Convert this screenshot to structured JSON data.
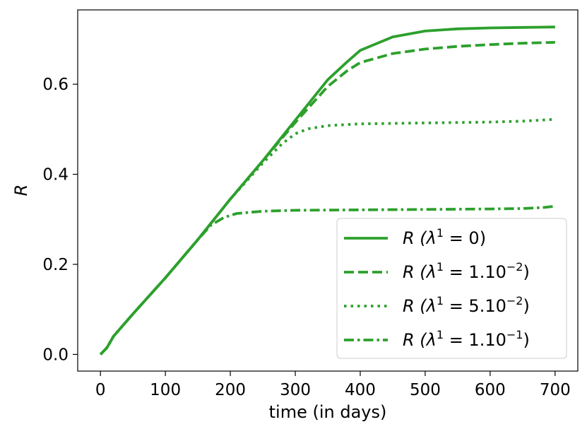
{
  "chart_data": {
    "type": "line",
    "xlabel": "time (in days)",
    "ylabel": "R",
    "xlim": [
      -35,
      735
    ],
    "ylim": [
      -0.037,
      0.765
    ],
    "xticks": [
      0,
      100,
      200,
      300,
      400,
      500,
      600,
      700
    ],
    "yticks": [
      0.0,
      0.2,
      0.4,
      0.6
    ],
    "grid": false,
    "legend_position": "lower-right",
    "color": "#2ca02c",
    "series": [
      {
        "name": "R (λ¹ = 0)",
        "legend": {
          "prefix": "R (λ",
          "sup": "1",
          "mid": " = 0",
          "exp": "",
          "suffix": ")"
        },
        "style": "solid",
        "x": [
          0,
          10,
          20,
          50,
          100,
          150,
          200,
          250,
          300,
          350,
          380,
          400,
          450,
          500,
          550,
          600,
          650,
          700
        ],
        "y": [
          0.0,
          0.015,
          0.04,
          0.09,
          0.17,
          0.255,
          0.345,
          0.43,
          0.52,
          0.61,
          0.65,
          0.675,
          0.705,
          0.718,
          0.723,
          0.725,
          0.726,
          0.727
        ]
      },
      {
        "name": "R (λ¹ = 1.10⁻²)",
        "legend": {
          "prefix": "R (λ",
          "sup": "1",
          "mid": " = 1.10",
          "exp": "−2",
          "suffix": ")"
        },
        "style": "dashed",
        "x": [
          0,
          10,
          20,
          50,
          100,
          150,
          200,
          250,
          300,
          350,
          380,
          400,
          450,
          500,
          550,
          600,
          650,
          700
        ],
        "y": [
          0.0,
          0.015,
          0.04,
          0.09,
          0.17,
          0.255,
          0.345,
          0.43,
          0.515,
          0.595,
          0.63,
          0.648,
          0.668,
          0.678,
          0.684,
          0.688,
          0.691,
          0.693
        ]
      },
      {
        "name": "R (λ¹ = 5.10⁻²)",
        "legend": {
          "prefix": "R (λ",
          "sup": "1",
          "mid": " = 5.10",
          "exp": "−2",
          "suffix": ")"
        },
        "style": "dotted",
        "x": [
          0,
          10,
          20,
          50,
          100,
          150,
          200,
          250,
          280,
          300,
          320,
          350,
          400,
          450,
          500,
          550,
          600,
          650,
          700
        ],
        "y": [
          0.0,
          0.015,
          0.04,
          0.09,
          0.17,
          0.255,
          0.345,
          0.425,
          0.468,
          0.49,
          0.501,
          0.508,
          0.512,
          0.513,
          0.514,
          0.515,
          0.516,
          0.518,
          0.522
        ]
      },
      {
        "name": "R (λ¹ = 1.10⁻¹)",
        "legend": {
          "prefix": "R (λ",
          "sup": "1",
          "mid": " = 1.10",
          "exp": "−1",
          "suffix": ")"
        },
        "style": "dashdot",
        "x": [
          0,
          10,
          20,
          50,
          100,
          150,
          170,
          190,
          210,
          250,
          300,
          400,
          500,
          600,
          650,
          680,
          700
        ],
        "y": [
          0.0,
          0.015,
          0.04,
          0.09,
          0.17,
          0.255,
          0.287,
          0.304,
          0.313,
          0.318,
          0.32,
          0.321,
          0.322,
          0.323,
          0.324,
          0.326,
          0.329
        ]
      }
    ]
  }
}
